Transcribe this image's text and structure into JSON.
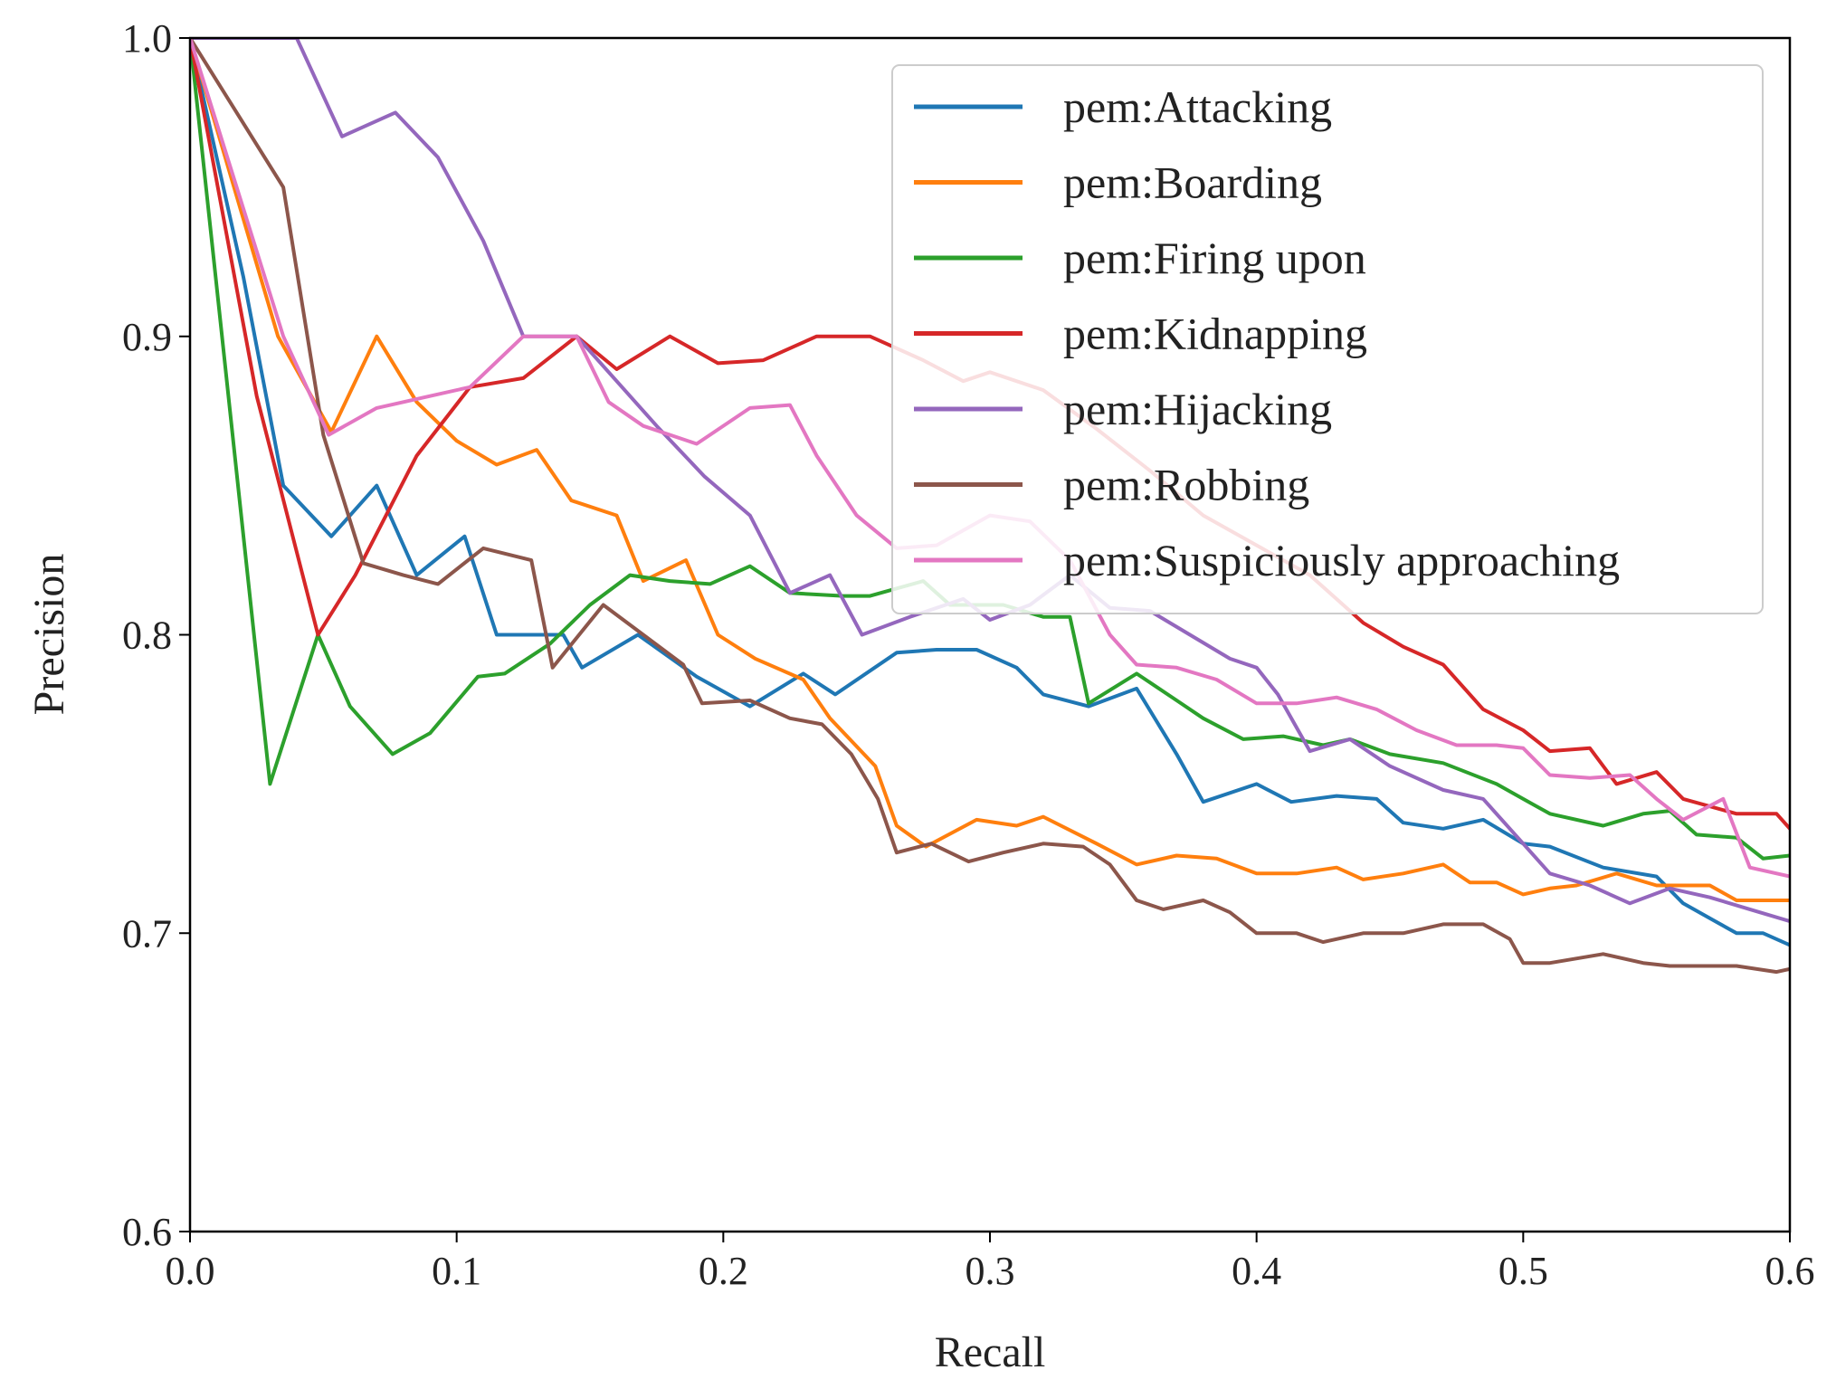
{
  "chart_data": {
    "type": "line",
    "title": "",
    "xlabel": "Recall",
    "ylabel": "Precision",
    "xlim": [
      0.0,
      0.6
    ],
    "ylim": [
      0.6,
      1.0
    ],
    "xticks": [
      {
        "value": 0.0,
        "label": "0.0"
      },
      {
        "value": 0.1,
        "label": "0.1"
      },
      {
        "value": 0.2,
        "label": "0.2"
      },
      {
        "value": 0.3,
        "label": "0.3"
      },
      {
        "value": 0.4,
        "label": "0.4"
      },
      {
        "value": 0.5,
        "label": "0.5"
      },
      {
        "value": 0.6,
        "label": "0.6"
      }
    ],
    "yticks": [
      {
        "value": 0.6,
        "label": "0.6"
      },
      {
        "value": 0.7,
        "label": "0.7"
      },
      {
        "value": 0.8,
        "label": "0.8"
      },
      {
        "value": 0.9,
        "label": "0.9"
      },
      {
        "value": 1.0,
        "label": "1.0"
      }
    ],
    "grid": false,
    "legend": "top-right",
    "series": [
      {
        "name": "pem:Attacking",
        "color": "#1f77b4",
        "points": [
          [
            0.0,
            1.0
          ],
          [
            0.02,
            0.92
          ],
          [
            0.035,
            0.85
          ],
          [
            0.053,
            0.833
          ],
          [
            0.07,
            0.85
          ],
          [
            0.085,
            0.82
          ],
          [
            0.103,
            0.833
          ],
          [
            0.115,
            0.8
          ],
          [
            0.14,
            0.8
          ],
          [
            0.147,
            0.789
          ],
          [
            0.168,
            0.8
          ],
          [
            0.19,
            0.786
          ],
          [
            0.21,
            0.776
          ],
          [
            0.23,
            0.787
          ],
          [
            0.242,
            0.78
          ],
          [
            0.265,
            0.794
          ],
          [
            0.28,
            0.795
          ],
          [
            0.295,
            0.795
          ],
          [
            0.31,
            0.789
          ],
          [
            0.32,
            0.78
          ],
          [
            0.337,
            0.776
          ],
          [
            0.355,
            0.782
          ],
          [
            0.37,
            0.76
          ],
          [
            0.38,
            0.744
          ],
          [
            0.4,
            0.75
          ],
          [
            0.413,
            0.744
          ],
          [
            0.43,
            0.746
          ],
          [
            0.445,
            0.745
          ],
          [
            0.455,
            0.737
          ],
          [
            0.47,
            0.735
          ],
          [
            0.485,
            0.738
          ],
          [
            0.5,
            0.73
          ],
          [
            0.51,
            0.729
          ],
          [
            0.53,
            0.722
          ],
          [
            0.55,
            0.719
          ],
          [
            0.56,
            0.71
          ],
          [
            0.58,
            0.7
          ],
          [
            0.59,
            0.7
          ],
          [
            0.6,
            0.696
          ]
        ]
      },
      {
        "name": "pem:Boarding",
        "color": "#ff7f0e",
        "points": [
          [
            0.0,
            1.0
          ],
          [
            0.033,
            0.9
          ],
          [
            0.053,
            0.868
          ],
          [
            0.07,
            0.9
          ],
          [
            0.085,
            0.878
          ],
          [
            0.1,
            0.865
          ],
          [
            0.115,
            0.857
          ],
          [
            0.13,
            0.862
          ],
          [
            0.143,
            0.845
          ],
          [
            0.16,
            0.84
          ],
          [
            0.17,
            0.818
          ],
          [
            0.186,
            0.825
          ],
          [
            0.198,
            0.8
          ],
          [
            0.212,
            0.792
          ],
          [
            0.23,
            0.785
          ],
          [
            0.24,
            0.772
          ],
          [
            0.257,
            0.756
          ],
          [
            0.265,
            0.736
          ],
          [
            0.276,
            0.729
          ],
          [
            0.295,
            0.738
          ],
          [
            0.31,
            0.736
          ],
          [
            0.32,
            0.739
          ],
          [
            0.34,
            0.73
          ],
          [
            0.355,
            0.723
          ],
          [
            0.37,
            0.726
          ],
          [
            0.385,
            0.725
          ],
          [
            0.4,
            0.72
          ],
          [
            0.415,
            0.72
          ],
          [
            0.43,
            0.722
          ],
          [
            0.44,
            0.718
          ],
          [
            0.455,
            0.72
          ],
          [
            0.47,
            0.723
          ],
          [
            0.48,
            0.717
          ],
          [
            0.49,
            0.717
          ],
          [
            0.5,
            0.713
          ],
          [
            0.51,
            0.715
          ],
          [
            0.52,
            0.716
          ],
          [
            0.535,
            0.72
          ],
          [
            0.55,
            0.716
          ],
          [
            0.57,
            0.716
          ],
          [
            0.58,
            0.711
          ],
          [
            0.6,
            0.711
          ]
        ]
      },
      {
        "name": "pem:Firing upon",
        "color": "#2ca02c",
        "points": [
          [
            0.0,
            1.0
          ],
          [
            0.03,
            0.75
          ],
          [
            0.048,
            0.8
          ],
          [
            0.06,
            0.776
          ],
          [
            0.076,
            0.76
          ],
          [
            0.09,
            0.767
          ],
          [
            0.108,
            0.786
          ],
          [
            0.118,
            0.787
          ],
          [
            0.135,
            0.797
          ],
          [
            0.15,
            0.81
          ],
          [
            0.165,
            0.82
          ],
          [
            0.18,
            0.818
          ],
          [
            0.195,
            0.817
          ],
          [
            0.21,
            0.823
          ],
          [
            0.225,
            0.814
          ],
          [
            0.245,
            0.813
          ],
          [
            0.255,
            0.813
          ],
          [
            0.275,
            0.818
          ],
          [
            0.285,
            0.81
          ],
          [
            0.305,
            0.81
          ],
          [
            0.32,
            0.806
          ],
          [
            0.33,
            0.806
          ],
          [
            0.337,
            0.777
          ],
          [
            0.355,
            0.787
          ],
          [
            0.37,
            0.778
          ],
          [
            0.38,
            0.772
          ],
          [
            0.395,
            0.765
          ],
          [
            0.41,
            0.766
          ],
          [
            0.425,
            0.763
          ],
          [
            0.435,
            0.765
          ],
          [
            0.45,
            0.76
          ],
          [
            0.47,
            0.757
          ],
          [
            0.49,
            0.75
          ],
          [
            0.5,
            0.745
          ],
          [
            0.51,
            0.74
          ],
          [
            0.53,
            0.736
          ],
          [
            0.545,
            0.74
          ],
          [
            0.555,
            0.741
          ],
          [
            0.565,
            0.733
          ],
          [
            0.58,
            0.732
          ],
          [
            0.59,
            0.725
          ],
          [
            0.6,
            0.726
          ]
        ]
      },
      {
        "name": "pem:Kidnapping",
        "color": "#d62728",
        "points": [
          [
            0.0,
            1.0
          ],
          [
            0.025,
            0.88
          ],
          [
            0.048,
            0.8
          ],
          [
            0.062,
            0.82
          ],
          [
            0.085,
            0.86
          ],
          [
            0.105,
            0.883
          ],
          [
            0.125,
            0.886
          ],
          [
            0.145,
            0.9
          ],
          [
            0.16,
            0.889
          ],
          [
            0.18,
            0.9
          ],
          [
            0.198,
            0.891
          ],
          [
            0.215,
            0.892
          ],
          [
            0.235,
            0.9
          ],
          [
            0.255,
            0.9
          ],
          [
            0.275,
            0.892
          ],
          [
            0.29,
            0.885
          ],
          [
            0.3,
            0.888
          ],
          [
            0.32,
            0.882
          ],
          [
            0.34,
            0.869
          ],
          [
            0.36,
            0.855
          ],
          [
            0.38,
            0.84
          ],
          [
            0.4,
            0.83
          ],
          [
            0.42,
            0.82
          ],
          [
            0.44,
            0.804
          ],
          [
            0.455,
            0.796
          ],
          [
            0.47,
            0.79
          ],
          [
            0.485,
            0.775
          ],
          [
            0.5,
            0.768
          ],
          [
            0.51,
            0.761
          ],
          [
            0.525,
            0.762
          ],
          [
            0.535,
            0.75
          ],
          [
            0.55,
            0.754
          ],
          [
            0.56,
            0.745
          ],
          [
            0.58,
            0.74
          ],
          [
            0.595,
            0.74
          ],
          [
            0.6,
            0.735
          ]
        ]
      },
      {
        "name": "pem:Hijacking",
        "color": "#9467bd",
        "points": [
          [
            0.0,
            1.0
          ],
          [
            0.04,
            1.0
          ],
          [
            0.057,
            0.967
          ],
          [
            0.077,
            0.975
          ],
          [
            0.093,
            0.96
          ],
          [
            0.11,
            0.932
          ],
          [
            0.125,
            0.9
          ],
          [
            0.145,
            0.9
          ],
          [
            0.16,
            0.885
          ],
          [
            0.175,
            0.87
          ],
          [
            0.193,
            0.853
          ],
          [
            0.21,
            0.84
          ],
          [
            0.225,
            0.814
          ],
          [
            0.24,
            0.82
          ],
          [
            0.252,
            0.8
          ],
          [
            0.27,
            0.806
          ],
          [
            0.29,
            0.812
          ],
          [
            0.3,
            0.805
          ],
          [
            0.315,
            0.81
          ],
          [
            0.33,
            0.82
          ],
          [
            0.345,
            0.809
          ],
          [
            0.36,
            0.808
          ],
          [
            0.375,
            0.8
          ],
          [
            0.39,
            0.792
          ],
          [
            0.4,
            0.789
          ],
          [
            0.408,
            0.78
          ],
          [
            0.42,
            0.761
          ],
          [
            0.435,
            0.765
          ],
          [
            0.45,
            0.756
          ],
          [
            0.47,
            0.748
          ],
          [
            0.485,
            0.745
          ],
          [
            0.5,
            0.73
          ],
          [
            0.51,
            0.72
          ],
          [
            0.525,
            0.716
          ],
          [
            0.54,
            0.71
          ],
          [
            0.555,
            0.715
          ],
          [
            0.57,
            0.712
          ],
          [
            0.585,
            0.708
          ],
          [
            0.6,
            0.704
          ]
        ]
      },
      {
        "name": "pem:Robbing",
        "color": "#8c564b",
        "points": [
          [
            0.0,
            1.0
          ],
          [
            0.035,
            0.95
          ],
          [
            0.05,
            0.867
          ],
          [
            0.065,
            0.824
          ],
          [
            0.08,
            0.82
          ],
          [
            0.093,
            0.817
          ],
          [
            0.11,
            0.829
          ],
          [
            0.128,
            0.825
          ],
          [
            0.136,
            0.789
          ],
          [
            0.155,
            0.81
          ],
          [
            0.17,
            0.8
          ],
          [
            0.185,
            0.79
          ],
          [
            0.192,
            0.777
          ],
          [
            0.21,
            0.778
          ],
          [
            0.225,
            0.772
          ],
          [
            0.237,
            0.77
          ],
          [
            0.248,
            0.76
          ],
          [
            0.258,
            0.745
          ],
          [
            0.265,
            0.727
          ],
          [
            0.278,
            0.73
          ],
          [
            0.292,
            0.724
          ],
          [
            0.305,
            0.727
          ],
          [
            0.32,
            0.73
          ],
          [
            0.335,
            0.729
          ],
          [
            0.345,
            0.723
          ],
          [
            0.355,
            0.711
          ],
          [
            0.365,
            0.708
          ],
          [
            0.38,
            0.711
          ],
          [
            0.39,
            0.707
          ],
          [
            0.4,
            0.7
          ],
          [
            0.415,
            0.7
          ],
          [
            0.425,
            0.697
          ],
          [
            0.44,
            0.7
          ],
          [
            0.455,
            0.7
          ],
          [
            0.47,
            0.703
          ],
          [
            0.485,
            0.703
          ],
          [
            0.495,
            0.698
          ],
          [
            0.5,
            0.69
          ],
          [
            0.51,
            0.69
          ],
          [
            0.53,
            0.693
          ],
          [
            0.545,
            0.69
          ],
          [
            0.555,
            0.689
          ],
          [
            0.58,
            0.689
          ],
          [
            0.595,
            0.687
          ],
          [
            0.6,
            0.688
          ]
        ]
      },
      {
        "name": "pem:Suspiciously approaching",
        "color": "#e377c2",
        "points": [
          [
            0.0,
            1.0
          ],
          [
            0.035,
            0.9
          ],
          [
            0.052,
            0.867
          ],
          [
            0.07,
            0.876
          ],
          [
            0.09,
            0.88
          ],
          [
            0.105,
            0.883
          ],
          [
            0.125,
            0.9
          ],
          [
            0.145,
            0.9
          ],
          [
            0.157,
            0.878
          ],
          [
            0.17,
            0.87
          ],
          [
            0.19,
            0.864
          ],
          [
            0.21,
            0.876
          ],
          [
            0.225,
            0.877
          ],
          [
            0.235,
            0.86
          ],
          [
            0.25,
            0.84
          ],
          [
            0.265,
            0.829
          ],
          [
            0.28,
            0.83
          ],
          [
            0.29,
            0.835
          ],
          [
            0.3,
            0.84
          ],
          [
            0.315,
            0.838
          ],
          [
            0.33,
            0.825
          ],
          [
            0.345,
            0.8
          ],
          [
            0.355,
            0.79
          ],
          [
            0.37,
            0.789
          ],
          [
            0.385,
            0.785
          ],
          [
            0.4,
            0.777
          ],
          [
            0.415,
            0.777
          ],
          [
            0.43,
            0.779
          ],
          [
            0.445,
            0.775
          ],
          [
            0.46,
            0.768
          ],
          [
            0.475,
            0.763
          ],
          [
            0.49,
            0.763
          ],
          [
            0.5,
            0.762
          ],
          [
            0.51,
            0.753
          ],
          [
            0.525,
            0.752
          ],
          [
            0.54,
            0.753
          ],
          [
            0.55,
            0.745
          ],
          [
            0.56,
            0.738
          ],
          [
            0.575,
            0.745
          ],
          [
            0.585,
            0.722
          ],
          [
            0.6,
            0.719
          ]
        ]
      }
    ]
  }
}
